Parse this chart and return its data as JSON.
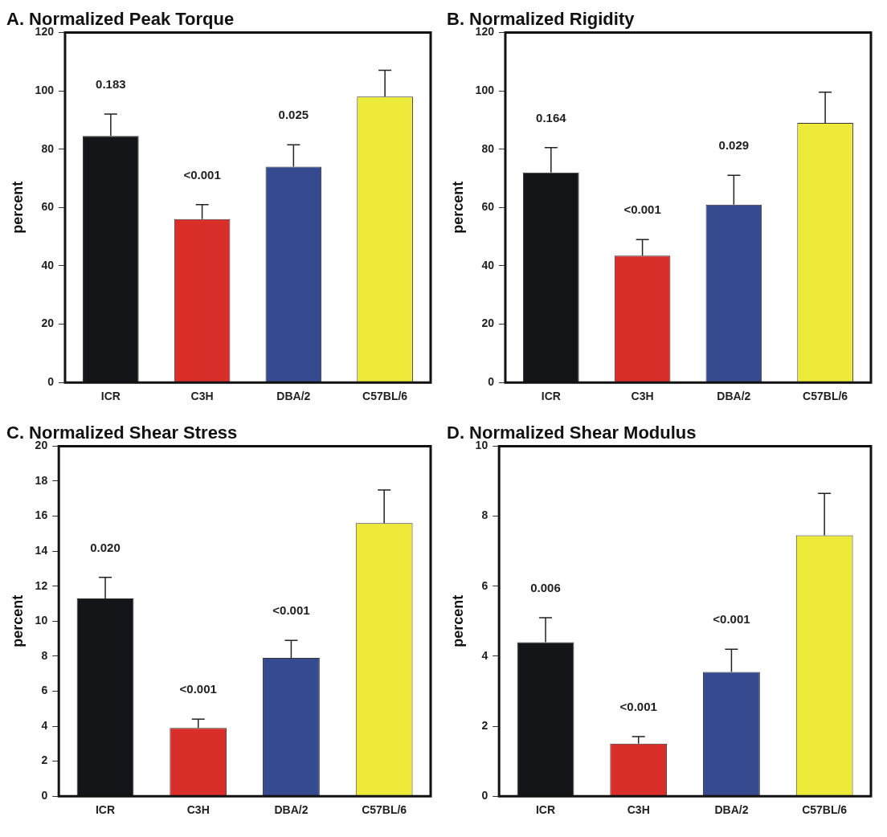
{
  "chart_data": [
    {
      "type": "bar",
      "title": "A. Normalized Peak Torque",
      "ylabel": "percent",
      "categories": [
        "ICR",
        "C3H",
        "DBA/2",
        "C57BL/6"
      ],
      "values": [
        84.5,
        56,
        74,
        98
      ],
      "colors": [
        "#141518",
        "#d92e2a",
        "#364a8f",
        "#eeea3a"
      ],
      "errors": [
        [
          84.5,
          92
        ],
        [
          56,
          61
        ],
        [
          74,
          81.5
        ],
        [
          98,
          107
        ]
      ],
      "ylim": [
        0,
        120
      ],
      "yticks": [
        0,
        20,
        40,
        60,
        80,
        100,
        120
      ],
      "annotations": [
        "0.183",
        "<0.001",
        "0.025"
      ]
    },
    {
      "type": "bar",
      "title": "B. Normalized Rigidity",
      "ylabel": "percent",
      "categories": [
        "ICR",
        "C3H",
        "DBA/2",
        "C57BL/6"
      ],
      "values": [
        72,
        43.5,
        61,
        89
      ],
      "colors": [
        "#141518",
        "#d92e2a",
        "#364a8f",
        "#eeea3a"
      ],
      "errors": [
        [
          72,
          80.5
        ],
        [
          43.5,
          49
        ],
        [
          61,
          71
        ],
        [
          89,
          99.5
        ]
      ],
      "ylim": [
        0,
        120
      ],
      "yticks": [
        0,
        20,
        40,
        60,
        80,
        100,
        120
      ],
      "annotations": [
        "0.164",
        "<0.001",
        "0.029"
      ]
    },
    {
      "type": "bar",
      "title": "C. Normalized Shear Stress",
      "ylabel": "percent",
      "categories": [
        "ICR",
        "C3H",
        "DBA/2",
        "C57BL/6"
      ],
      "values": [
        11.3,
        3.9,
        7.9,
        15.6
      ],
      "colors": [
        "#141518",
        "#d92e2a",
        "#364a8f",
        "#eeea3a"
      ],
      "errors": [
        [
          11.3,
          12.5
        ],
        [
          3.9,
          4.4
        ],
        [
          7.9,
          8.9
        ],
        [
          15.6,
          17.5
        ]
      ],
      "ylim": [
        0,
        20
      ],
      "yticks": [
        0,
        2,
        4,
        6,
        8,
        10,
        12,
        14,
        16,
        18,
        20
      ],
      "annotations": [
        "0.020",
        "<0.001",
        "<0.001"
      ]
    },
    {
      "type": "bar",
      "title": "D. Normalized Shear Modulus",
      "ylabel": "percent",
      "categories": [
        "ICR",
        "C3H",
        "DBA/2",
        "C57BL/6"
      ],
      "values": [
        4.4,
        1.5,
        3.55,
        7.45
      ],
      "colors": [
        "#141518",
        "#d92e2a",
        "#364a8f",
        "#eeea3a"
      ],
      "errors": [
        [
          4.4,
          5.1
        ],
        [
          1.5,
          1.7
        ],
        [
          3.55,
          4.2
        ],
        [
          7.45,
          8.65
        ]
      ],
      "ylim": [
        0,
        10
      ],
      "yticks": [
        0,
        2,
        4,
        6,
        8,
        10
      ],
      "annotations": [
        "0.006",
        "<0.001",
        "<0.001"
      ]
    }
  ]
}
